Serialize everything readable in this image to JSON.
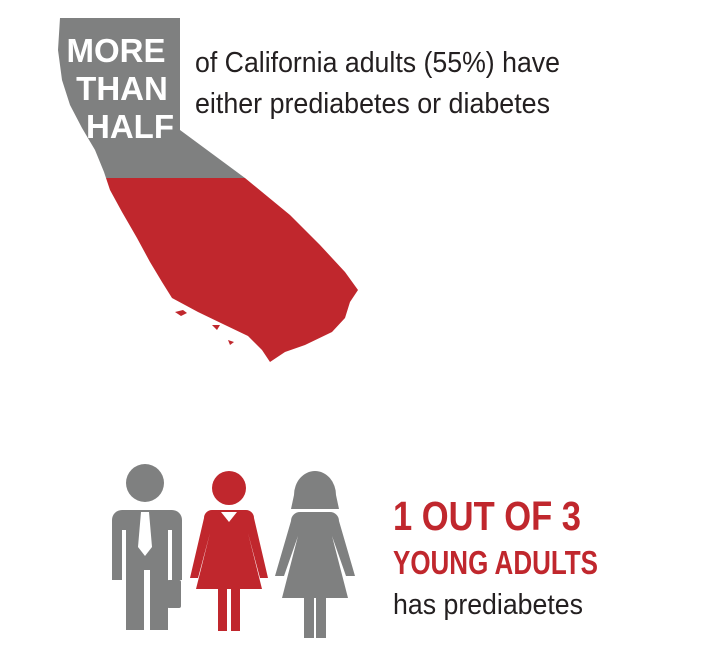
{
  "california": {
    "headline": [
      "MORE",
      "THAN",
      "HALF"
    ],
    "text": [
      "of California adults (55%) have",
      "either prediabetes or diabetes"
    ]
  },
  "young_adults": {
    "headline": "1 OUT OF 3",
    "subhead": "YOUNG ADULTS",
    "text": "has prediabetes"
  }
}
